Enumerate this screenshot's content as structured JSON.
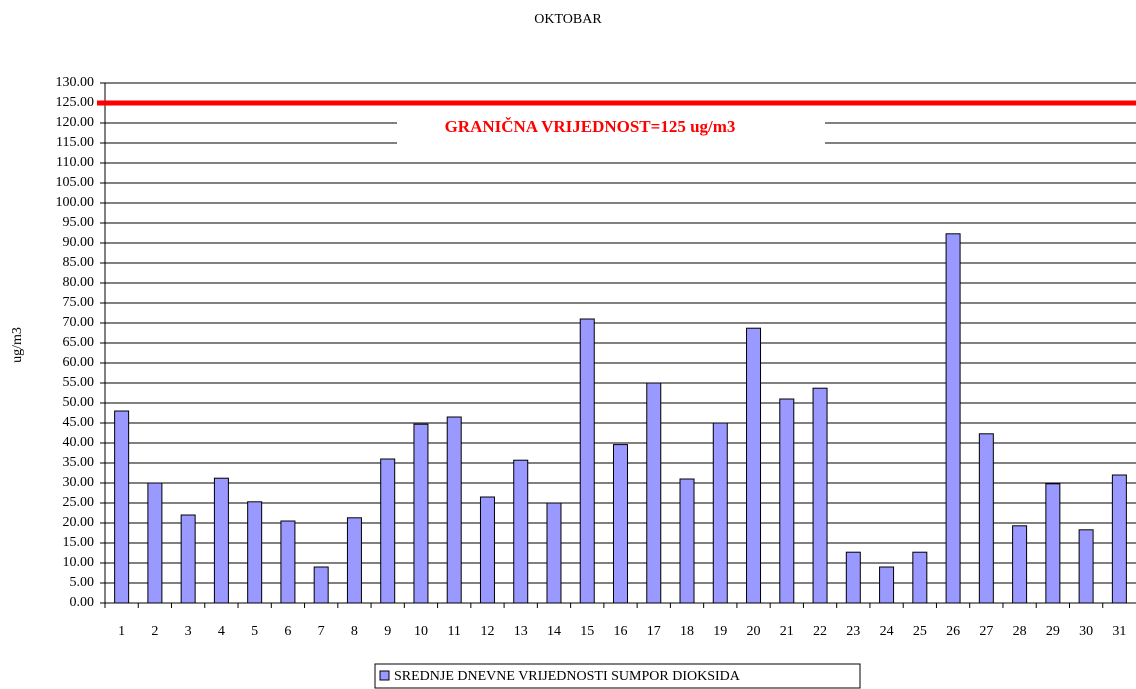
{
  "chart_data": {
    "type": "bar",
    "title": "OKTOBAR",
    "y_label": "ug/m3",
    "categories": [
      "1",
      "2",
      "3",
      "4",
      "5",
      "6",
      "7",
      "8",
      "9",
      "10",
      "11",
      "12",
      "13",
      "14",
      "15",
      "16",
      "17",
      "18",
      "19",
      "20",
      "21",
      "22",
      "23",
      "24",
      "25",
      "26",
      "27",
      "28",
      "29",
      "30",
      "31"
    ],
    "series": [
      {
        "name": "SREDNJE DNEVNE VRIJEDNOSTI SUMPOR DIOKSIDA",
        "color": "#9999ff",
        "values": [
          48,
          30,
          22,
          31.2,
          25.3,
          20.5,
          9,
          21.3,
          36,
          44.7,
          46.5,
          26.5,
          35.7,
          25,
          71,
          39.6,
          55,
          31,
          45,
          68.7,
          51,
          53.7,
          12.7,
          9,
          12.7,
          92.3,
          42.3,
          19.3,
          29.8,
          18.3,
          32
        ]
      }
    ],
    "threshold": {
      "value": 125,
      "label": "GRANIČNA VRIJEDNOST=125 ug/m3",
      "color": "#ff0000"
    },
    "ylim": [
      0,
      130
    ],
    "yticks": [
      {
        "value": 0,
        "label": "0.00"
      },
      {
        "value": 5,
        "label": "5.00"
      },
      {
        "value": 10,
        "label": "10.00"
      },
      {
        "value": 15,
        "label": "15.00"
      },
      {
        "value": 20,
        "label": "20.00"
      },
      {
        "value": 25,
        "label": "25.00"
      },
      {
        "value": 30,
        "label": "30.00"
      },
      {
        "value": 35,
        "label": "35.00"
      },
      {
        "value": 40,
        "label": "40.00"
      },
      {
        "value": 45,
        "label": "45.00"
      },
      {
        "value": 50,
        "label": "50.00"
      },
      {
        "value": 55,
        "label": "55.00"
      },
      {
        "value": 60,
        "label": "60.00"
      },
      {
        "value": 65,
        "label": "65.00"
      },
      {
        "value": 70,
        "label": "70.00"
      },
      {
        "value": 75,
        "label": "75.00"
      },
      {
        "value": 80,
        "label": "80.00"
      },
      {
        "value": 85,
        "label": "85.00"
      },
      {
        "value": 90,
        "label": "90.00"
      },
      {
        "value": 95,
        "label": "95.00"
      },
      {
        "value": 100,
        "label": "100.00"
      },
      {
        "value": 105,
        "label": "105.00"
      },
      {
        "value": 110,
        "label": "110.00"
      },
      {
        "value": 115,
        "label": "115.00"
      },
      {
        "value": 120,
        "label": "120.00"
      },
      {
        "value": 125,
        "label": "125.00"
      },
      {
        "value": 130,
        "label": "130.00"
      }
    ],
    "grid": true,
    "legend": "bottom"
  }
}
